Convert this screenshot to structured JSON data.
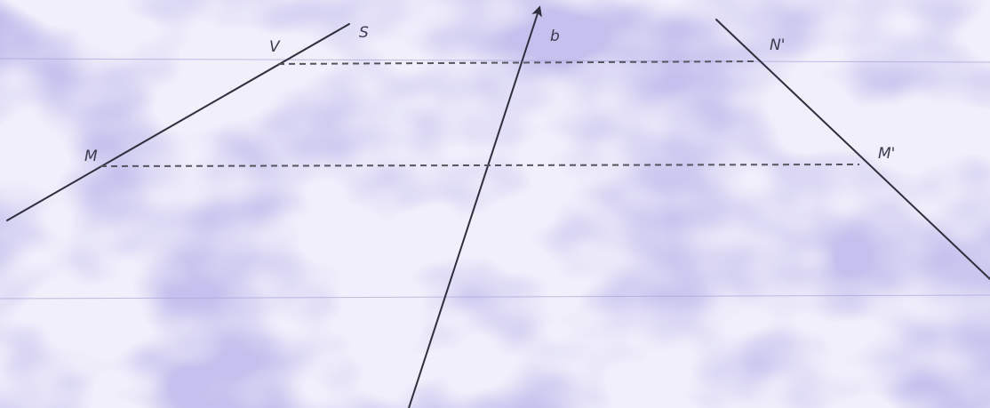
{
  "labels": {
    "s": "S",
    "v": "V",
    "m": "M",
    "b": "b",
    "n_prime": "N'",
    "m_prime": "M'"
  },
  "colors": {
    "paper_light": "#f1effb",
    "paper_dark": "#8f86d8",
    "ink": "#2e2e3c",
    "dash_ink": "#55555f"
  }
}
